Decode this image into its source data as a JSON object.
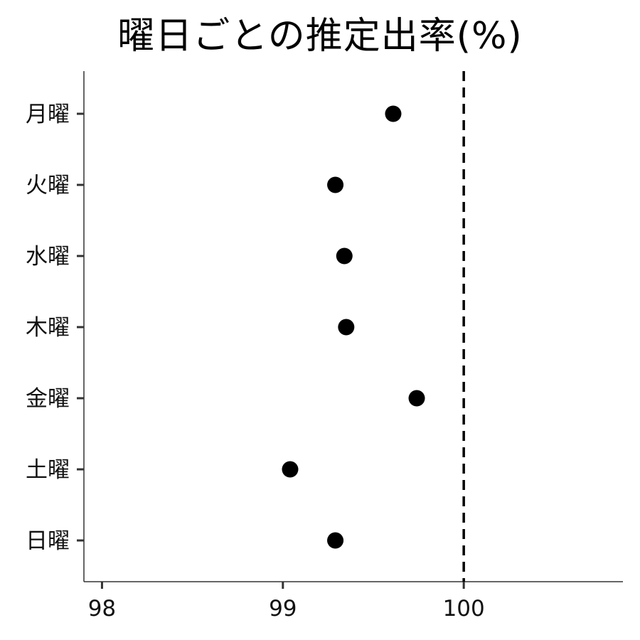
{
  "chart_data": {
    "type": "scatter",
    "title": "曜日ごとの推定出率(%)",
    "xlabel": "",
    "ylabel": "",
    "categories": [
      "月曜",
      "火曜",
      "水曜",
      "木曜",
      "金曜",
      "土曜",
      "日曜"
    ],
    "values": [
      99.61,
      99.29,
      99.34,
      99.35,
      99.74,
      99.04,
      99.29
    ],
    "xlim": [
      97.9,
      100.88
    ],
    "xticks": [
      "98",
      "99",
      "100"
    ],
    "reference_line": {
      "x": 100,
      "style": "dashed"
    },
    "grid": false,
    "marker_color": "#000000"
  }
}
